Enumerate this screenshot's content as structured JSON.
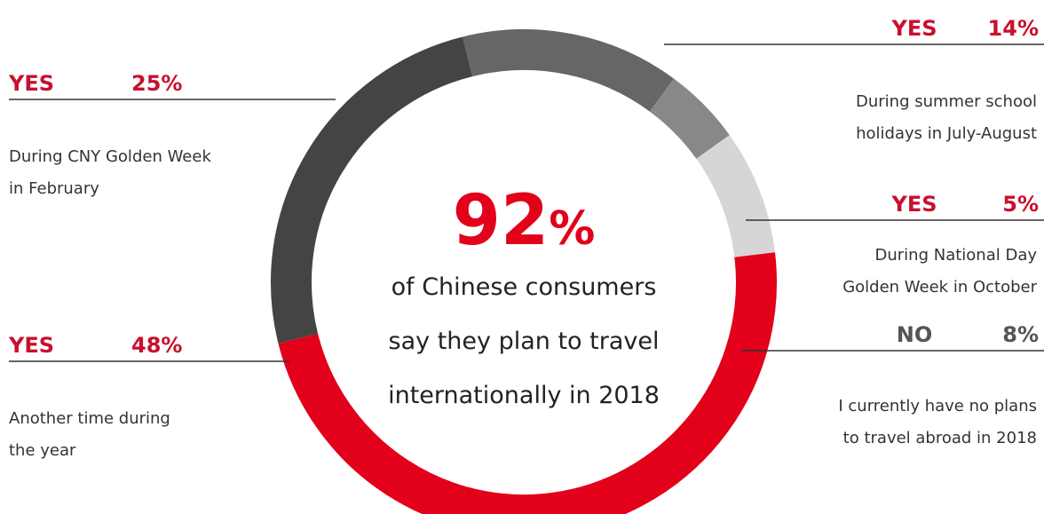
{
  "chart_data": {
    "type": "pie",
    "headline": {
      "value": "92",
      "symbol": "%",
      "lines": [
        "of Chinese consumers",
        "say they plan to travel",
        "internationally in 2018"
      ]
    },
    "slices": [
      {
        "answer": "YES",
        "value": 25,
        "label": "25%",
        "description": [
          "During CNY Golden Week",
          "in February"
        ],
        "color": "#444444"
      },
      {
        "answer": "YES",
        "value": 14,
        "label": "14%",
        "description": [
          "During summer school",
          "holidays in July-August"
        ],
        "color": "#666666"
      },
      {
        "answer": "YES",
        "value": 5,
        "label": "5%",
        "description": [
          "During National Day",
          "Golden Week in October"
        ],
        "color": "#888888"
      },
      {
        "answer": "NO",
        "value": 8,
        "label": "8%",
        "description": [
          "I currently have no plans",
          "to travel abroad in 2018"
        ],
        "color": "#d6d6d6"
      },
      {
        "answer": "YES",
        "value": 48,
        "label": "48%",
        "description": [
          "Another time during",
          "the year"
        ],
        "color": "#e2001a"
      }
    ],
    "colors": {
      "yes_label": "#c8102e",
      "no_label": "#555555",
      "accent": "#e2001a"
    }
  }
}
